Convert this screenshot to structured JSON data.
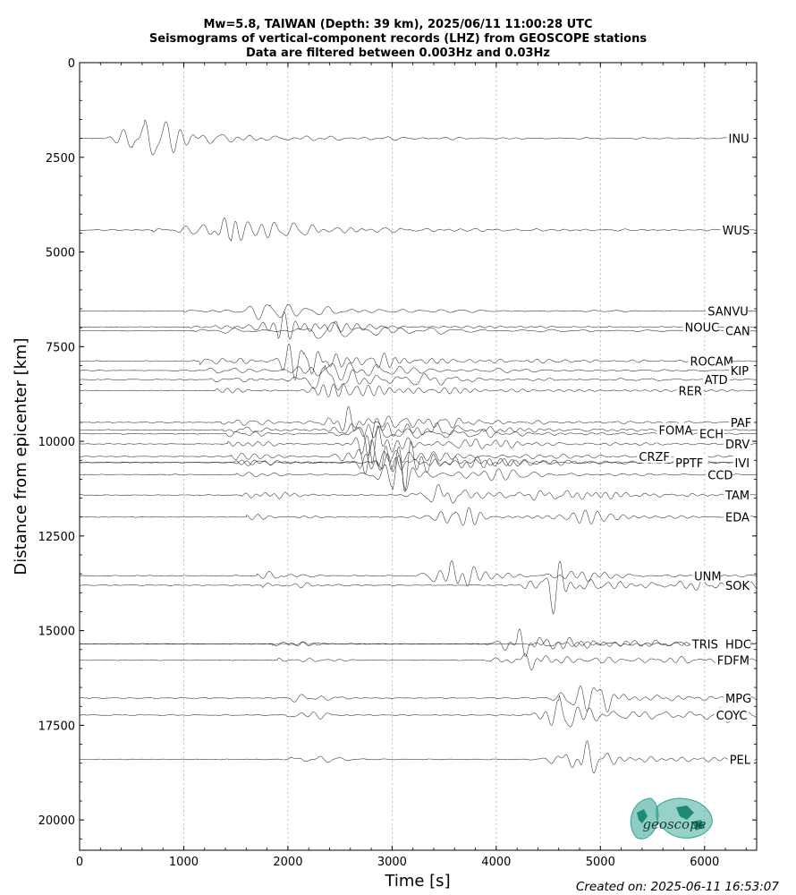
{
  "chart_data": {
    "type": "line",
    "title": [
      "Mw=5.8, TAIWAN (Depth: 39 km), 2025/06/11 11:00:28 UTC",
      "Seismograms of vertical-component records (LHZ) from GEOSCOPE stations",
      "Data are filtered between 0.003Hz and 0.03Hz"
    ],
    "xlabel": "Time [s]",
    "ylabel": "Distance from epicenter [km]",
    "xlim": [
      0,
      6500
    ],
    "ylim": [
      20800,
      0
    ],
    "xticks": [
      0,
      1000,
      2000,
      3000,
      4000,
      5000,
      6000
    ],
    "yticks": [
      0,
      2500,
      5000,
      7500,
      10000,
      12500,
      15000,
      17500,
      20000
    ],
    "xtick_labels": [
      "0",
      "1000",
      "2000",
      "3000",
      "4000",
      "5000",
      "6000"
    ],
    "ytick_labels": [
      "0",
      "2500",
      "5000",
      "7500",
      "10000",
      "12500",
      "15000",
      "17500",
      "20000"
    ],
    "grid": "vertical dotted",
    "stations": [
      {
        "name": "INU",
        "distance": 2000,
        "label_time": 6230,
        "p_arrival": 500,
        "surface_arrival": 620,
        "amp": 1.0
      },
      {
        "name": "WUS",
        "distance": 4420,
        "label_time": 6170,
        "p_arrival": 700,
        "surface_arrival": 1450,
        "amp": 1.0
      },
      {
        "name": "SANVU",
        "distance": 6560,
        "label_time": 6030,
        "p_arrival": 1000,
        "surface_arrival": 1820,
        "amp": 0.9
      },
      {
        "name": "NOUC",
        "distance": 6980,
        "label_time": 5810,
        "p_arrival": 1050,
        "surface_arrival": 1900,
        "amp": 0.8
      },
      {
        "name": "CAN",
        "distance": 7080,
        "label_time": 6200,
        "p_arrival": 1100,
        "surface_arrival": 2250,
        "amp": 0.9
      },
      {
        "name": "ROCAM",
        "distance": 7880,
        "label_time": 5860,
        "p_arrival": 1150,
        "surface_arrival": 2150,
        "amp": 1.1
      },
      {
        "name": "KIP",
        "distance": 8130,
        "label_time": 6250,
        "p_arrival": 1200,
        "surface_arrival": 2200,
        "amp": 1.0
      },
      {
        "name": "ATD",
        "distance": 8370,
        "label_time": 6000,
        "p_arrival": 1250,
        "surface_arrival": 2350,
        "amp": 0.9
      },
      {
        "name": "RER",
        "distance": 8660,
        "label_time": 5750,
        "p_arrival": 1300,
        "surface_arrival": 2500,
        "amp": 0.8
      },
      {
        "name": "PAF",
        "distance": 9500,
        "label_time": 6250,
        "p_arrival": 1350,
        "surface_arrival": 2550,
        "amp": 1.0
      },
      {
        "name": "FOMA",
        "distance": 9700,
        "label_time": 5560,
        "p_arrival": 1380,
        "surface_arrival": 2650,
        "amp": 0.9
      },
      {
        "name": "ECH",
        "distance": 9800,
        "label_time": 5950,
        "p_arrival": 1400,
        "surface_arrival": 2750,
        "amp": 0.8
      },
      {
        "name": "DRV",
        "distance": 10070,
        "label_time": 6200,
        "p_arrival": 1420,
        "surface_arrival": 2800,
        "amp": 0.9
      },
      {
        "name": "CRZF",
        "distance": 10400,
        "label_time": 5370,
        "p_arrival": 1450,
        "surface_arrival": 2700,
        "amp": 1.1
      },
      {
        "name": "PPTF",
        "distance": 10560,
        "label_time": 5720,
        "p_arrival": 1480,
        "surface_arrival": 2900,
        "amp": 1.0
      },
      {
        "name": "IVI",
        "distance": 10560,
        "label_time": 6290,
        "p_arrival": 1480,
        "surface_arrival": 3100,
        "amp": 1.0
      },
      {
        "name": "CCD",
        "distance": 10880,
        "label_time": 6030,
        "p_arrival": 1500,
        "surface_arrival": 3000,
        "amp": 0.9
      },
      {
        "name": "TAM",
        "distance": 11420,
        "label_time": 6200,
        "p_arrival": 1550,
        "surface_arrival": 3500,
        "amp": 0.9
      },
      {
        "name": "EDA",
        "distance": 12000,
        "label_time": 6200,
        "p_arrival": 1600,
        "surface_arrival": 3600,
        "amp": 1.0
      },
      {
        "name": "UNM",
        "distance": 13550,
        "label_time": 5900,
        "p_arrival": 1700,
        "surface_arrival": 3550,
        "amp": 0.9
      },
      {
        "name": "SOK",
        "distance": 13800,
        "label_time": 6200,
        "p_arrival": 1750,
        "surface_arrival": 4500,
        "amp": 1.0
      },
      {
        "name": "TRIS",
        "distance": 15350,
        "label_time": 5880,
        "p_arrival": 1850,
        "surface_arrival": 4200,
        "amp": 1.0
      },
      {
        "name": "HDC",
        "distance": 15350,
        "label_time": 6200,
        "p_arrival": 1850,
        "surface_arrival": 4600,
        "amp": 0.9
      },
      {
        "name": "FDFM",
        "distance": 15780,
        "label_time": 6120,
        "p_arrival": 1900,
        "surface_arrival": 4300,
        "amp": 1.0
      },
      {
        "name": "MPG",
        "distance": 16780,
        "label_time": 6200,
        "p_arrival": 1950,
        "surface_arrival": 4900,
        "amp": 1.0
      },
      {
        "name": "COYC",
        "distance": 17230,
        "label_time": 6110,
        "p_arrival": 1980,
        "surface_arrival": 4600,
        "amp": 1.0
      },
      {
        "name": "PEL",
        "distance": 18400,
        "label_time": 6240,
        "p_arrival": 2000,
        "surface_arrival": 4800,
        "amp": 1.0
      }
    ]
  },
  "logo": {
    "text": "geoscope",
    "color": "#2fa38f"
  },
  "footer": {
    "created": "Created on: 2025-06-11 16:53:07"
  }
}
